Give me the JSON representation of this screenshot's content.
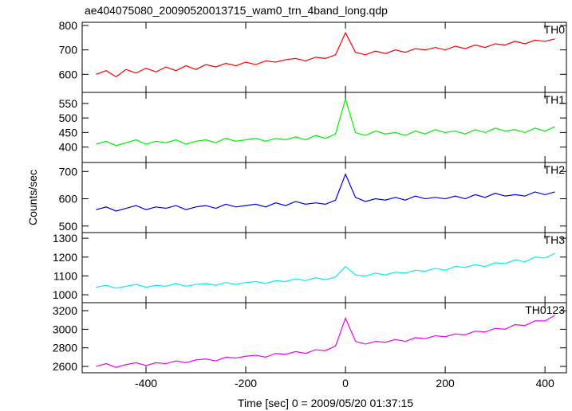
{
  "title": "ae404075080_20090520013715_wam0_trn_4band_long.qdp",
  "xlabel": "Time [sec] 0 = 2009/05/20 01:37:15",
  "ylabel": "Counts/sec",
  "x": [
    -500,
    -480,
    -460,
    -440,
    -420,
    -400,
    -380,
    -360,
    -340,
    -320,
    -300,
    -280,
    -260,
    -240,
    -220,
    -200,
    -180,
    -160,
    -140,
    -120,
    -100,
    -80,
    -60,
    -40,
    -20,
    0,
    20,
    40,
    60,
    80,
    100,
    120,
    140,
    160,
    180,
    200,
    220,
    240,
    260,
    280,
    300,
    320,
    340,
    360,
    380,
    400,
    420
  ],
  "xlim": [
    -528,
    443
  ],
  "xticks": [
    -400,
    -200,
    0,
    200,
    400
  ],
  "chart_data": [
    {
      "type": "line",
      "ylim": [
        526,
        813
      ],
      "yticks": [
        600,
        700,
        800
      ],
      "series": [
        {
          "name": "TH0",
          "color": "#ff0000",
          "values": [
            600,
            615,
            590,
            620,
            605,
            625,
            610,
            630,
            615,
            635,
            620,
            640,
            630,
            645,
            635,
            650,
            640,
            655,
            650,
            660,
            665,
            655,
            670,
            665,
            680,
            770,
            690,
            680,
            695,
            685,
            700,
            690,
            705,
            700,
            710,
            700,
            715,
            705,
            720,
            710,
            725,
            720,
            735,
            725,
            740,
            735,
            745
          ]
        }
      ]
    },
    {
      "type": "line",
      "ylim": [
        347,
        588
      ],
      "yticks": [
        400,
        450,
        500,
        550
      ],
      "series": [
        {
          "name": "TH1",
          "color": "#00ee00",
          "values": [
            410,
            420,
            405,
            415,
            425,
            410,
            420,
            415,
            425,
            410,
            420,
            425,
            415,
            430,
            420,
            425,
            430,
            420,
            430,
            425,
            435,
            425,
            440,
            430,
            445,
            565,
            450,
            440,
            455,
            445,
            450,
            440,
            455,
            445,
            460,
            450,
            455,
            445,
            460,
            450,
            465,
            455,
            460,
            450,
            465,
            455,
            470
          ]
        }
      ]
    },
    {
      "type": "line",
      "ylim": [
        476,
        733
      ],
      "yticks": [
        500,
        600,
        700
      ],
      "series": [
        {
          "name": "TH2",
          "color": "#0000ee",
          "values": [
            560,
            570,
            555,
            565,
            575,
            560,
            570,
            565,
            575,
            560,
            570,
            575,
            565,
            580,
            570,
            575,
            580,
            570,
            585,
            575,
            590,
            580,
            585,
            580,
            595,
            690,
            605,
            590,
            600,
            595,
            605,
            595,
            610,
            600,
            605,
            600,
            610,
            600,
            615,
            605,
            620,
            610,
            615,
            610,
            625,
            615,
            625
          ]
        }
      ]
    },
    {
      "type": "line",
      "ylim": [
        958,
        1330
      ],
      "yticks": [
        1000,
        1100,
        1200,
        1300
      ],
      "series": [
        {
          "name": "TH3",
          "color": "#00eeee",
          "values": [
            1040,
            1050,
            1035,
            1045,
            1055,
            1040,
            1050,
            1045,
            1060,
            1045,
            1055,
            1060,
            1050,
            1065,
            1055,
            1065,
            1070,
            1060,
            1075,
            1070,
            1085,
            1075,
            1090,
            1080,
            1095,
            1150,
            1105,
            1100,
            1115,
            1105,
            1120,
            1115,
            1130,
            1125,
            1140,
            1130,
            1150,
            1145,
            1160,
            1150,
            1170,
            1165,
            1185,
            1175,
            1200,
            1195,
            1220
          ]
        }
      ]
    },
    {
      "type": "line",
      "ylim": [
        2532,
        3286
      ],
      "yticks": [
        2600,
        2800,
        3000,
        3200
      ],
      "series": [
        {
          "name": "TH0123",
          "color": "#ee00ee",
          "values": [
            2600,
            2630,
            2590,
            2620,
            2640,
            2610,
            2640,
            2630,
            2660,
            2640,
            2670,
            2680,
            2660,
            2700,
            2690,
            2710,
            2720,
            2700,
            2740,
            2730,
            2760,
            2740,
            2780,
            2770,
            2820,
            3120,
            2870,
            2840,
            2870,
            2860,
            2890,
            2870,
            2910,
            2900,
            2930,
            2920,
            2950,
            2940,
            2980,
            2970,
            3010,
            3000,
            3050,
            3040,
            3090,
            3090,
            3150
          ]
        }
      ]
    }
  ]
}
